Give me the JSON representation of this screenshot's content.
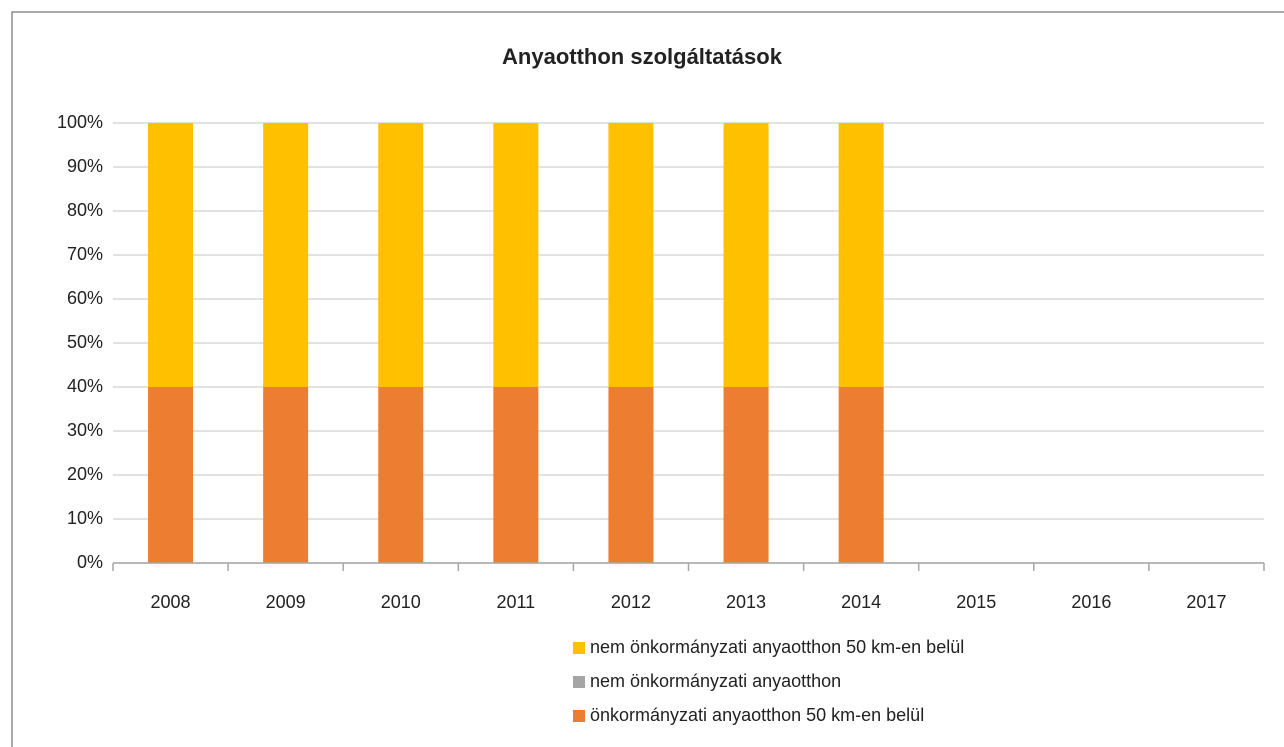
{
  "chart_data": {
    "type": "bar",
    "stacked": true,
    "title": "Anyaotthon szolgáltatások",
    "categories": [
      "2008",
      "2009",
      "2010",
      "2011",
      "2012",
      "2013",
      "2014",
      "2015",
      "2016",
      "2017"
    ],
    "series": [
      {
        "name": "önkormányzati anyaotthon 50 km-en belül",
        "color": "#ed7d31",
        "values": [
          40,
          40,
          40,
          40,
          40,
          40,
          40,
          null,
          null,
          null
        ]
      },
      {
        "name": "nem önkormányzati anyaotthon",
        "color": "#a5a5a5",
        "values": [
          0,
          0,
          0,
          0,
          0,
          0,
          0,
          null,
          null,
          null
        ]
      },
      {
        "name": "nem önkormányzati anyaotthon 50 km-en belül",
        "color": "#ffc000",
        "values": [
          60,
          60,
          60,
          60,
          60,
          60,
          60,
          null,
          null,
          null
        ]
      }
    ],
    "ylim": [
      0,
      100
    ],
    "yticks": [
      {
        "value": 0,
        "label": "0%"
      },
      {
        "value": 10,
        "label": "10%"
      },
      {
        "value": 20,
        "label": "20%"
      },
      {
        "value": 30,
        "label": "30%"
      },
      {
        "value": 40,
        "label": "40%"
      },
      {
        "value": 50,
        "label": "50%"
      },
      {
        "value": 60,
        "label": "60%"
      },
      {
        "value": 70,
        "label": "70%"
      },
      {
        "value": 80,
        "label": "80%"
      },
      {
        "value": 90,
        "label": "90%"
      },
      {
        "value": 100,
        "label": "100%"
      }
    ],
    "grid": true,
    "legend": "bottom"
  }
}
